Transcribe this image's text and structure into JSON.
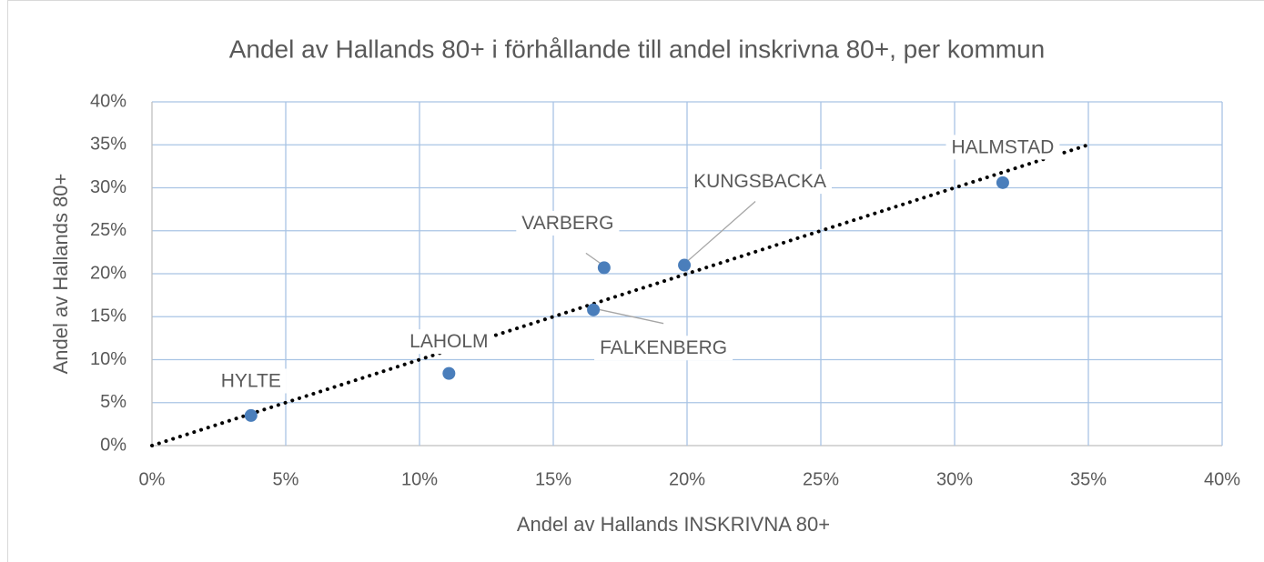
{
  "chart_data": {
    "type": "scatter",
    "title": "Andel av Hallands 80+ i förhållande till andel inskrivna 80+, per kommun",
    "x_label": "Andel av Hallands INSKRIVNA 80+",
    "y_label": "Andel av Hallands 80+",
    "series": [
      {
        "color": "#4a7ebb",
        "labels": [
          "HYLTE",
          "LAHOLM",
          "FALKENBERG",
          "VARBERG",
          "KUNGSBACKA",
          "HALMSTAD"
        ],
        "x": [
          3.7,
          11.1,
          16.5,
          16.9,
          19.9,
          31.8
        ],
        "values": [
          3.5,
          8.4,
          15.8,
          20.7,
          21.0,
          30.6
        ]
      }
    ],
    "trendline": {
      "color": "#000000",
      "x": [
        0,
        35
      ],
      "values": [
        0,
        35
      ]
    },
    "xlim": [
      0,
      40
    ],
    "ylim": [
      0,
      40
    ],
    "xticks": [
      {
        "value": 0,
        "label": "0%"
      },
      {
        "value": 5,
        "label": "5%"
      },
      {
        "value": 10,
        "label": "10%"
      },
      {
        "value": 15,
        "label": "15%"
      },
      {
        "value": 20,
        "label": "20%"
      },
      {
        "value": 25,
        "label": "25%"
      },
      {
        "value": 30,
        "label": "30%"
      },
      {
        "value": 35,
        "label": "35%"
      },
      {
        "value": 40,
        "label": "40%"
      }
    ],
    "yticks": [
      {
        "value": 0,
        "label": "0%"
      },
      {
        "value": 5,
        "label": "5%"
      },
      {
        "value": 10,
        "label": "10%"
      },
      {
        "value": 15,
        "label": "15%"
      },
      {
        "value": 20,
        "label": "20%"
      },
      {
        "value": 25,
        "label": "25%"
      },
      {
        "value": 30,
        "label": "30%"
      },
      {
        "value": 35,
        "label": "35%"
      },
      {
        "value": 40,
        "label": "40%"
      }
    ],
    "grid": true
  }
}
